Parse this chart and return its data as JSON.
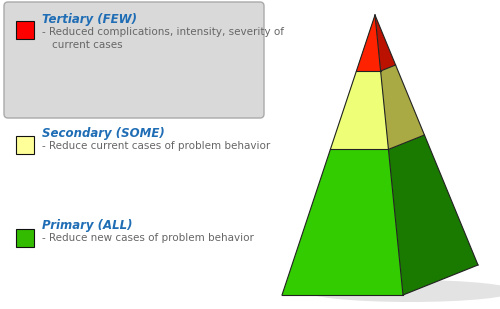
{
  "bg_color": "#ffffff",
  "tertiary_box_bg": "#d9d9d9",
  "tertiary_box_edge": "#aaaaaa",
  "tertiary_color": "#ff0000",
  "secondary_color": "#ffff99",
  "primary_color": "#33bb00",
  "title_color": "#1f6db5",
  "desc_color": "#666666",
  "tertiary_label": "Tertiary (FEW)",
  "tertiary_desc": "- Reduced complications, intensity, severity of\n  current cases",
  "secondary_label": "Secondary (SOME)",
  "secondary_desc": "- Reduce current cases of problem behavior",
  "primary_label": "Primary (ALL)",
  "primary_desc": "- Reduce new cases of problem behavior",
  "primary_front": "#33cc00",
  "primary_side": "#1a7a00",
  "secondary_front": "#eeff77",
  "secondary_side": "#aaaa44",
  "tertiary_front": "#ff2200",
  "tertiary_side": "#bb1100",
  "shadow_color": "#cccccc"
}
